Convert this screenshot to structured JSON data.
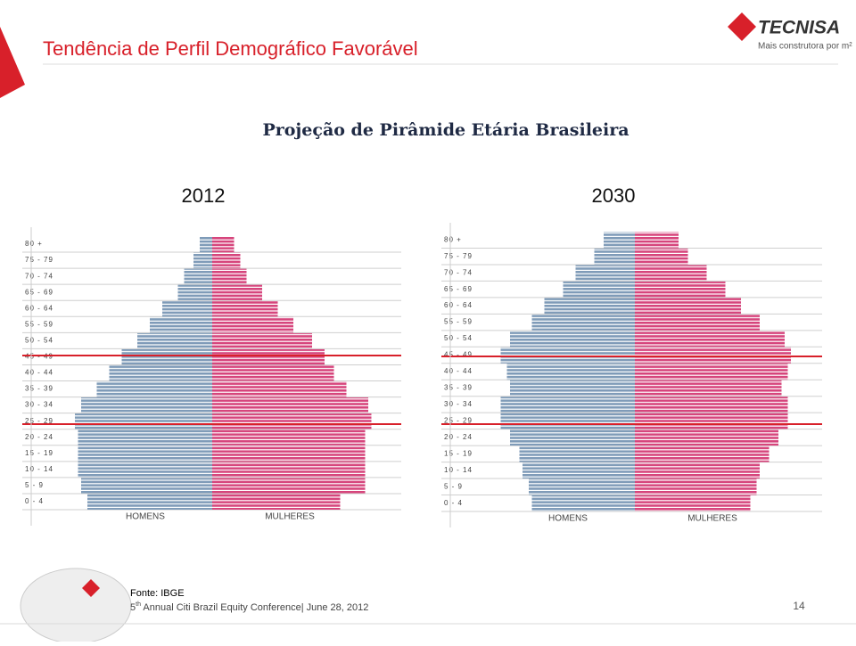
{
  "slide": {
    "title": "Tendência de Perfil Demográfico Favorável",
    "logo": "TECNISA",
    "tagline": "Mais construtora por m²",
    "subtitle": "Projeção de Pirâmide Etária Brasileira",
    "source": "Fonte: IBGE",
    "footer": {
      "ordinal": "5",
      "suffix": "th",
      "text": " Annual Citi Brazil Equity Conference| June 28, 2012"
    },
    "page": "14"
  },
  "chart_data": [
    {
      "type": "pyramid",
      "title": "2012",
      "categories": [
        "0 - 4",
        "5 - 9",
        "10 - 14",
        "15 - 19",
        "20 - 24",
        "25 - 29",
        "30 - 34",
        "35 - 39",
        "40 - 44",
        "45 - 49",
        "50 - 54",
        "55 - 59",
        "60 - 64",
        "65 - 69",
        "70 - 74",
        "75 - 79",
        "80 +"
      ],
      "series": [
        {
          "name": "HOMENS",
          "color": "#7f9bb8",
          "values": [
            4.0,
            4.2,
            4.3,
            4.3,
            4.3,
            4.4,
            4.2,
            3.7,
            3.3,
            2.9,
            2.4,
            2.0,
            1.6,
            1.1,
            0.9,
            0.6,
            0.4
          ]
        },
        {
          "name": "MULHERES",
          "color": "#d6457c",
          "values": [
            4.1,
            4.9,
            4.9,
            4.9,
            4.9,
            5.1,
            5.0,
            4.3,
            3.9,
            3.6,
            3.2,
            2.6,
            2.1,
            1.6,
            1.1,
            0.9,
            0.7
          ]
        }
      ]
    },
    {
      "type": "pyramid",
      "title": "2030",
      "categories": [
        "0 - 4",
        "5 - 9",
        "10 - 14",
        "15 - 19",
        "20 - 24",
        "25 - 29",
        "30 - 34",
        "35 - 39",
        "40 - 44",
        "45 - 49",
        "50 - 54",
        "55 - 59",
        "60 - 64",
        "65 - 69",
        "70 - 74",
        "75 - 79",
        "80 +"
      ],
      "series": [
        {
          "name": "HOMENS",
          "color": "#7f9bb8",
          "values": [
            3.3,
            3.4,
            3.6,
            3.7,
            4.0,
            4.3,
            4.3,
            4.0,
            4.1,
            4.3,
            4.0,
            3.3,
            2.9,
            2.3,
            1.9,
            1.3,
            1.0
          ]
        },
        {
          "name": "MULHERES",
          "color": "#d6457c",
          "values": [
            3.7,
            3.9,
            4.0,
            4.3,
            4.6,
            4.9,
            4.9,
            4.7,
            4.9,
            5.0,
            4.8,
            4.0,
            3.4,
            2.9,
            2.3,
            1.7,
            1.4
          ]
        }
      ]
    }
  ]
}
